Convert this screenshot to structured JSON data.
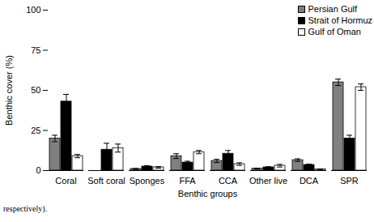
{
  "chart_data": {
    "type": "bar",
    "xlabel": "Benthic groups",
    "ylabel": "Benthic cover (%)",
    "caption": "respectively).",
    "categories": [
      "Coral",
      "Soft coral",
      "Sponges",
      "FFA",
      "CCA",
      "Other live",
      "DCA",
      "SPR"
    ],
    "series": [
      {
        "name": "Persian Gulf",
        "color": "#808080",
        "values": [
          20,
          0,
          1,
          9,
          6,
          1.2,
          6.5,
          55
        ],
        "errors": [
          2,
          0,
          0.3,
          1.5,
          1,
          0.3,
          0.8,
          2
        ]
      },
      {
        "name": "Strait of Hormuz",
        "color": "#000000",
        "values": [
          43,
          13,
          2.5,
          5,
          10.5,
          2,
          3.5,
          20
        ],
        "errors": [
          4.5,
          4,
          0.5,
          0.8,
          2,
          0.4,
          0.5,
          2
        ]
      },
      {
        "name": "Gulf of Oman",
        "color": "#ffffff",
        "values": [
          9,
          14,
          2,
          11.5,
          4,
          3,
          0.8,
          52
        ],
        "errors": [
          1,
          2.5,
          0.5,
          1,
          0.8,
          0.8,
          0.2,
          2
        ]
      }
    ],
    "ylim": [
      0,
      100
    ],
    "yticks": [
      0,
      25,
      50,
      75,
      100
    ],
    "legend": "top-right",
    "grid": false
  }
}
